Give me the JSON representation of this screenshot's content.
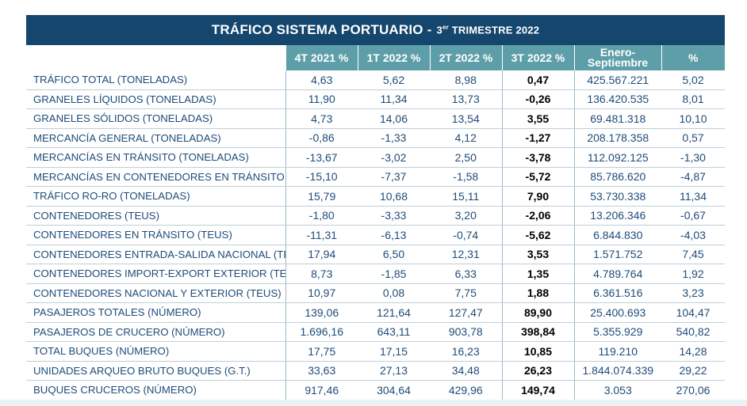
{
  "title": {
    "main": "TRÁFICO SISTEMA PORTUARIO -",
    "sub_prefix": "3",
    "sub_sup": "er",
    "sub_suffix": "TRIMESTRE 2022"
  },
  "headers": [
    "4T 2021 %",
    "1T 2022 %",
    "2T 2022 %",
    "3T 2022 %",
    "Enero-Septiembre",
    "%"
  ],
  "rows": [
    {
      "label": "TRÁFICO TOTAL (TONELADAS)",
      "values": [
        "4,63",
        "5,62",
        "8,98",
        "0,47",
        "425.567.221",
        "5,02"
      ]
    },
    {
      "label": "GRANELES LÍQUIDOS (TONELADAS)",
      "values": [
        "11,90",
        "11,34",
        "13,73",
        "-0,26",
        "136.420.535",
        "8,01"
      ]
    },
    {
      "label": "GRANELES SÓLIDOS (TONELADAS)",
      "values": [
        "4,73",
        "14,06",
        "13,54",
        "3,55",
        "69.481.318",
        "10,10"
      ]
    },
    {
      "label": "MERCANCÍA GENERAL (TONELADAS)",
      "values": [
        "-0,86",
        "-1,33",
        "4,12",
        "-1,27",
        "208.178.358",
        "0,57"
      ]
    },
    {
      "label": "MERCANCÍAS EN TRÁNSITO (TONELADAS)",
      "values": [
        "-13,67",
        "-3,02",
        "2,50",
        "-3,78",
        "112.092.125",
        "-1,30"
      ]
    },
    {
      "label": "MERCANCÍAS EN CONTENEDORES EN TRÁNSITO (TN)",
      "values": [
        "-15,10",
        "-7,37",
        "-1,58",
        "-5,72",
        "85.786.620",
        "-4,87"
      ]
    },
    {
      "label": "TRÁFICO RO-RO (TONELADAS)",
      "values": [
        "15,79",
        "10,68",
        "15,11",
        "7,90",
        "53.730.338",
        "11,34"
      ]
    },
    {
      "label": "CONTENEDORES (TEUS)",
      "values": [
        "-1,80",
        "-3,33",
        "3,20",
        "-2,06",
        "13.206.346",
        "-0,67"
      ]
    },
    {
      "label": "CONTENEDORES EN TRÁNSITO (TEUS)",
      "values": [
        "-11,31",
        "-6,13",
        "-0,74",
        "-5,62",
        "6.844.830",
        "-4,03"
      ]
    },
    {
      "label": "CONTENEDORES ENTRADA-SALIDA NACIONAL (TEUS)",
      "values": [
        "17,94",
        "6,50",
        "12,31",
        "3,53",
        "1.571.752",
        "7,45"
      ]
    },
    {
      "label": "CONTENEDORES IMPORT-EXPORT EXTERIOR (TEUS)",
      "values": [
        "8,73",
        "-1,85",
        "6,33",
        "1,35",
        "4.789.764",
        "1,92"
      ]
    },
    {
      "label": "CONTENEDORES NACIONAL Y EXTERIOR (TEUS)",
      "values": [
        "10,97",
        "0,08",
        "7,75",
        "1,88",
        "6.361.516",
        "3,23"
      ]
    },
    {
      "label": "PASAJEROS TOTALES (NÚMERO)",
      "values": [
        "139,06",
        "121,64",
        "127,47",
        "89,90",
        "25.400.693",
        "104,47"
      ]
    },
    {
      "label": "PASAJEROS DE CRUCERO (NÚMERO)",
      "values": [
        "1.696,16",
        "643,11",
        "903,78",
        "398,84",
        "5.355.929",
        "540,82"
      ]
    },
    {
      "label": "TOTAL BUQUES (NÚMERO)",
      "values": [
        "17,75",
        "17,15",
        "16,23",
        "10,85",
        "119.210",
        "14,28"
      ]
    },
    {
      "label": "UNIDADES ARQUEO BRUTO BUQUES (G.T.)",
      "values": [
        "33,63",
        "27,13",
        "34,48",
        "26,23",
        "1.844.074.339",
        "29,22"
      ]
    },
    {
      "label": "BUQUES CRUCEROS (NÚMERO)",
      "values": [
        "917,46",
        "304,64",
        "429,96",
        "149,74",
        "3.053",
        "270,06"
      ]
    }
  ],
  "colors": {
    "title_bg": "#14466e",
    "header_bg": "#5d9ea9",
    "text": "#1e4c7a",
    "highlight_text": "#000000"
  }
}
